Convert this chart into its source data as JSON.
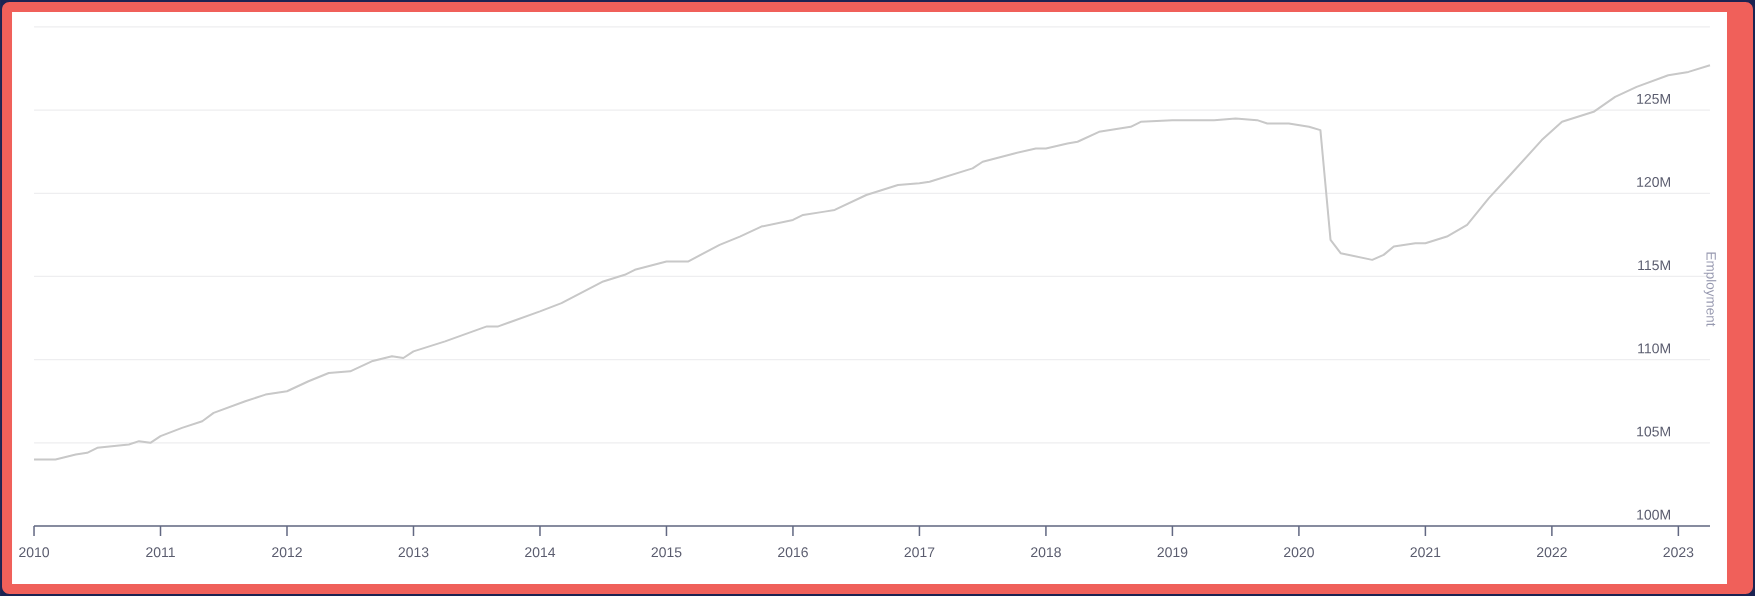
{
  "chart_data": {
    "type": "line",
    "ylabel": "Employment",
    "x": [
      "2010-01",
      "2010-03",
      "2010-05",
      "2010-06",
      "2010-07",
      "2010-10",
      "2010-11",
      "2010-12",
      "2011-01",
      "2011-03",
      "2011-05",
      "2011-06",
      "2011-09",
      "2011-11",
      "2012-01",
      "2012-03",
      "2012-05",
      "2012-07",
      "2012-09",
      "2012-11",
      "2012-12",
      "2013-01",
      "2013-04",
      "2013-08",
      "2013-09",
      "2014-01",
      "2014-03",
      "2014-07",
      "2014-09",
      "2014-10",
      "2015-01",
      "2015-03",
      "2015-06",
      "2015-08",
      "2015-10",
      "2016-01",
      "2016-02",
      "2016-04",
      "2016-05",
      "2016-08",
      "2016-11",
      "2017-01",
      "2017-02",
      "2017-06",
      "2017-07",
      "2017-10",
      "2017-12",
      "2018-01",
      "2018-03",
      "2018-04",
      "2018-06",
      "2018-09",
      "2018-10",
      "2019-01",
      "2019-05",
      "2019-07",
      "2019-09",
      "2019-10",
      "2019-12",
      "2020-02",
      "2020-03",
      "2020-04",
      "2020-05",
      "2020-08",
      "2020-09",
      "2020-10",
      "2020-12",
      "2021-01",
      "2021-03",
      "2021-05",
      "2021-07",
      "2021-09",
      "2021-12",
      "2022-02",
      "2022-05",
      "2022-07",
      "2022-09",
      "2022-12",
      "2023-02",
      "2023-04"
    ],
    "values": [
      104.0,
      104.0,
      104.3,
      104.4,
      104.7,
      104.9,
      105.1,
      105.0,
      105.4,
      105.9,
      106.3,
      106.8,
      107.5,
      107.9,
      108.1,
      108.7,
      109.2,
      109.3,
      109.9,
      110.2,
      110.1,
      110.5,
      111.1,
      112.0,
      112.0,
      112.9,
      113.4,
      114.7,
      115.1,
      115.4,
      115.9,
      115.9,
      116.9,
      117.4,
      118.0,
      118.4,
      118.7,
      118.9,
      119.0,
      119.9,
      120.5,
      120.6,
      120.7,
      121.5,
      121.9,
      122.4,
      122.7,
      122.7,
      123.0,
      123.1,
      123.7,
      124.0,
      124.3,
      124.4,
      124.4,
      124.5,
      124.4,
      124.2,
      124.2,
      124.0,
      123.8,
      117.2,
      116.4,
      116.0,
      116.3,
      116.8,
      117.0,
      117.0,
      117.4,
      118.1,
      119.7,
      121.1,
      123.2,
      124.3,
      124.9,
      125.8,
      126.4,
      127.1,
      127.3,
      127.7
    ],
    "color": "#c8c8c8",
    "xlim": [
      "2010-01",
      "2023-04"
    ],
    "xticks": [
      "2010",
      "2011",
      "2012",
      "2013",
      "2014",
      "2015",
      "2016",
      "2017",
      "2018",
      "2019",
      "2020",
      "2021",
      "2022",
      "2023"
    ],
    "ylim": [
      100,
      130
    ],
    "yticks": [
      {
        "value": 100,
        "label": "100M"
      },
      {
        "value": 105,
        "label": "105M"
      },
      {
        "value": 110,
        "label": "110M"
      },
      {
        "value": 115,
        "label": "115M"
      },
      {
        "value": 120,
        "label": "120M"
      },
      {
        "value": 125,
        "label": "125M"
      },
      {
        "value": 130,
        "label": null
      }
    ],
    "grid": "y",
    "marker": "none",
    "line_style": "solid"
  }
}
